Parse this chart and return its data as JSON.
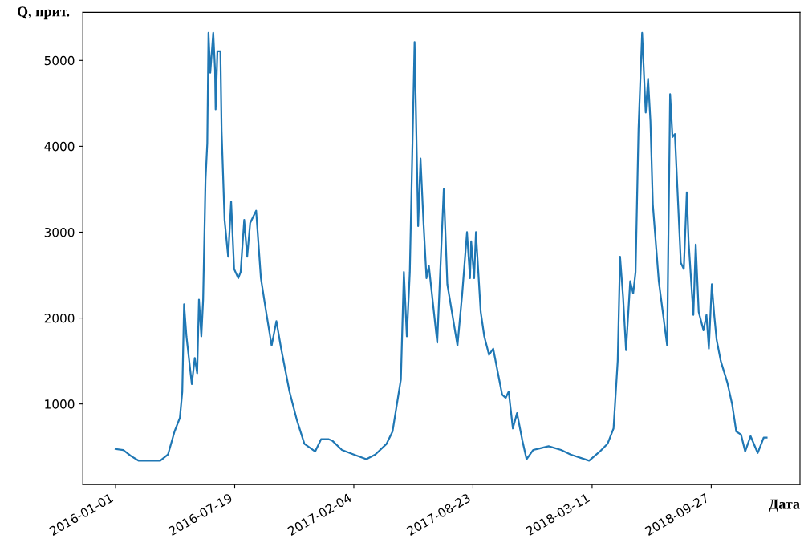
{
  "chart_data": {
    "type": "line",
    "xlabel": "Дата",
    "ylabel": "Q, прит.",
    "grid": false,
    "legend": false,
    "xlim": [
      "2015-11-07",
      "2019-02-23"
    ],
    "ylim": [
      60,
      5560
    ],
    "xticks": [
      "2016-01-01",
      "2016-07-19",
      "2017-02-04",
      "2017-08-23",
      "2018-03-11",
      "2018-09-27"
    ],
    "yticks": [
      1000,
      2000,
      3000,
      4000,
      5000
    ],
    "series": [
      {
        "color": "#1f77b4",
        "x": [
          "2016-01-01",
          "2016-01-14",
          "2016-01-27",
          "2016-02-09",
          "2016-03-16",
          "2016-03-29",
          "2016-04-09",
          "2016-04-18",
          "2016-04-22",
          "2016-04-25",
          "2016-04-29",
          "2016-05-08",
          "2016-05-13",
          "2016-05-17",
          "2016-05-20",
          "2016-05-24",
          "2016-05-27",
          "2016-05-31",
          "2016-06-03",
          "2016-06-05",
          "2016-06-08",
          "2016-06-13",
          "2016-06-16",
          "2016-06-17",
          "2016-06-20",
          "2016-06-25",
          "2016-06-27",
          "2016-07-02",
          "2016-07-08",
          "2016-07-13",
          "2016-07-18",
          "2016-07-25",
          "2016-07-29",
          "2016-08-04",
          "2016-08-09",
          "2016-08-14",
          "2016-08-24",
          "2016-09-01",
          "2016-09-09",
          "2016-09-19",
          "2016-09-27",
          "2016-10-05",
          "2016-10-19",
          "2016-10-31",
          "2016-11-13",
          "2016-12-01",
          "2016-12-11",
          "2016-12-24",
          "2016-12-30",
          "2017-01-15",
          "2017-02-04",
          "2017-02-25",
          "2017-03-12",
          "2017-03-31",
          "2017-04-10",
          "2017-04-24",
          "2017-04-29",
          "2017-05-04",
          "2017-05-09",
          "2017-05-17",
          "2017-05-23",
          "2017-05-27",
          "2017-06-01",
          "2017-06-06",
          "2017-06-10",
          "2017-06-24",
          "2017-07-05",
          "2017-07-11",
          "2017-07-28",
          "2017-08-05",
          "2017-08-13",
          "2017-08-18",
          "2017-08-20",
          "2017-08-25",
          "2017-08-28",
          "2017-09-05",
          "2017-09-11",
          "2017-09-19",
          "2017-09-26",
          "2017-10-11",
          "2017-10-17",
          "2017-10-22",
          "2017-10-29",
          "2017-11-05",
          "2017-11-14",
          "2017-11-21",
          "2017-12-02",
          "2017-12-13",
          "2017-12-28",
          "2018-01-18",
          "2018-02-03",
          "2018-03-06",
          "2018-03-24",
          "2018-04-06",
          "2018-04-16",
          "2018-04-23",
          "2018-04-27",
          "2018-05-02",
          "2018-05-07",
          "2018-05-14",
          "2018-05-19",
          "2018-05-23",
          "2018-05-28",
          "2018-06-03",
          "2018-06-09",
          "2018-06-13",
          "2018-06-17",
          "2018-06-21",
          "2018-07-01",
          "2018-07-15",
          "2018-07-20",
          "2018-07-24",
          "2018-07-28",
          "2018-08-07",
          "2018-08-12",
          "2018-08-17",
          "2018-08-20",
          "2018-08-28",
          "2018-09-01",
          "2018-09-06",
          "2018-09-14",
          "2018-09-19",
          "2018-09-23",
          "2018-09-28",
          "2018-10-02",
          "2018-10-06",
          "2018-10-13",
          "2018-10-24",
          "2018-11-01",
          "2018-11-08",
          "2018-11-16",
          "2018-11-23",
          "2018-12-02",
          "2018-12-14",
          "2018-12-24",
          "2018-12-29"
        ],
        "values": [
          475,
          464,
          393,
          339,
          339,
          411,
          679,
          839,
          1143,
          2161,
          1786,
          1232,
          1536,
          1357,
          2214,
          1786,
          2214,
          3607,
          4036,
          5321,
          4857,
          5321,
          4893,
          4429,
          5107,
          5107,
          4179,
          3143,
          2714,
          3357,
          2571,
          2464,
          2536,
          3143,
          2714,
          3107,
          3250,
          2464,
          2107,
          1679,
          1964,
          1643,
          1143,
          821,
          536,
          446,
          589,
          589,
          571,
          464,
          411,
          357,
          411,
          536,
          679,
          1286,
          2536,
          1786,
          2536,
          5214,
          3071,
          3857,
          3107,
          2464,
          2607,
          1714,
          3500,
          2393,
          1679,
          2286,
          3000,
          2464,
          2893,
          2464,
          3000,
          2071,
          1786,
          1571,
          1643,
          1107,
          1071,
          1143,
          714,
          893,
          571,
          357,
          464,
          482,
          507,
          464,
          411,
          339,
          446,
          536,
          714,
          1500,
          2714,
          2250,
          1625,
          2429,
          2286,
          2536,
          4214,
          5321,
          4393,
          4786,
          4286,
          3321,
          2429,
          1679,
          4607,
          4107,
          4143,
          2643,
          2571,
          3464,
          2893,
          2036,
          2857,
          2071,
          1857,
          2036,
          1643,
          2393,
          2036,
          1750,
          1500,
          1250,
          1000,
          679,
          643,
          446,
          625,
          429,
          607,
          607
        ]
      }
    ]
  }
}
